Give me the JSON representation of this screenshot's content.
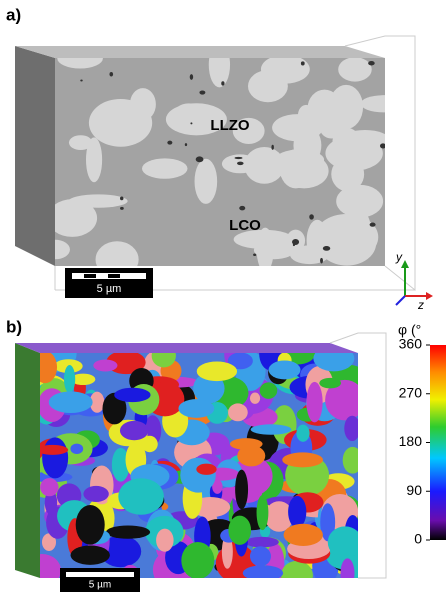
{
  "panel_a": {
    "label": "a)",
    "phase_labels": [
      "LLZO",
      "LCO"
    ],
    "scale_bar": "5 µm",
    "axes": [
      "y",
      "z"
    ]
  },
  "panel_b": {
    "label": "b)",
    "scale_bar": "5 µm",
    "colorbar": {
      "title": "φ (°",
      "lim": [
        0,
        360
      ],
      "ticks": [
        0,
        90,
        180,
        270,
        360
      ]
    }
  }
}
